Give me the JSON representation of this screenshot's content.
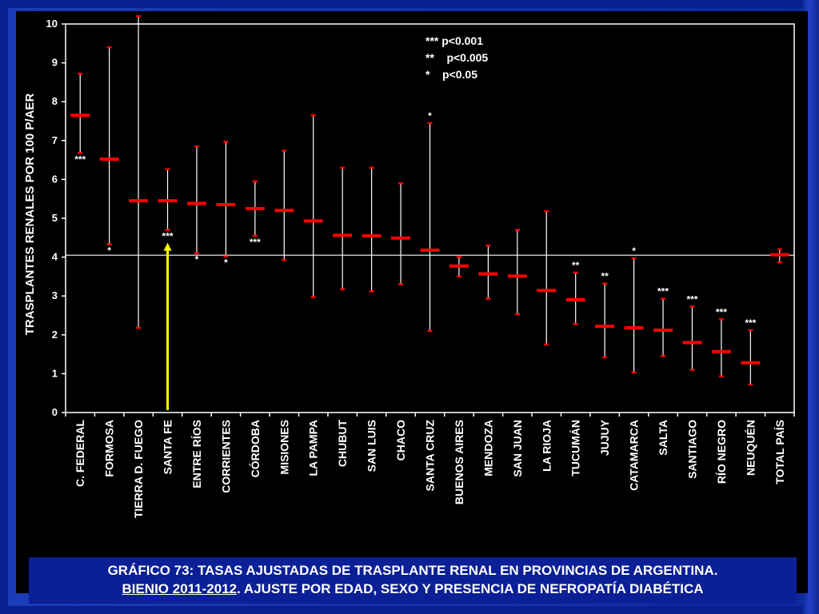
{
  "colors": {
    "background": "#0a1f8f",
    "plot_background": "#000000",
    "axis": "#ffffff",
    "marker": "#ff0000",
    "arrow": "#ffff00",
    "caption_background": "#0b1f96"
  },
  "caption": {
    "line1": "GRÁFICO 73: TASAS AJUSTADAS DE TRASPLANTE RENAL EN PROVINCIAS DE ARGENTINA.",
    "line2_underlined": "BIENIO 2011-2012",
    "line2_rest": ". AJUSTE POR EDAD, SEXO Y PRESENCIA DE NEFROPATÍA DIABÉTICA"
  },
  "legend": {
    "lines": [
      "*** p<0.001",
      "**    p<0.005",
      "*    p<0.05"
    ]
  },
  "chart_data": {
    "type": "errorbar",
    "ylabel": "TRASPLANTES RENALES POR 100 P/AER",
    "ylim": [
      0,
      10
    ],
    "yticks": [
      0,
      1,
      2,
      3,
      4,
      5,
      6,
      7,
      8,
      9,
      10
    ],
    "reference_line": 4.05,
    "highlight_arrow_category": "SANTA FE",
    "categories": [
      "C. FEDERAL",
      "FORMOSA",
      "TIERRA D. FUEGO",
      "SANTA FE",
      "ENTRE RÍOS",
      "CORRIENTES",
      "CÓRDOBA",
      "MISIONES",
      "LA PAMPA",
      "CHUBUT",
      "SAN LUIS",
      "CHACO",
      "SANTA CRUZ",
      "BUENOS AIRES",
      "MENDOZA",
      "SAN JUAN",
      "LA RIOJA",
      "TUCUMÁN",
      "JUJUY",
      "CATAMARCA",
      "SALTA",
      "SANTIAGO",
      "RÍO NEGRO",
      "NEUQUÉN",
      "TOTAL PAÍS"
    ],
    "values": [
      7.65,
      6.52,
      5.45,
      5.45,
      5.38,
      5.35,
      5.25,
      5.2,
      4.93,
      4.56,
      4.55,
      4.49,
      4.18,
      3.77,
      3.57,
      3.51,
      3.14,
      2.9,
      2.22,
      2.18,
      2.12,
      1.8,
      1.57,
      1.28,
      4.06
    ],
    "upper": [
      8.72,
      9.4,
      10.2,
      6.26,
      6.85,
      6.97,
      5.95,
      6.74,
      7.65,
      6.3,
      6.3,
      5.9,
      7.45,
      4.0,
      4.3,
      4.7,
      5.18,
      3.6,
      3.32,
      3.97,
      2.93,
      2.73,
      2.4,
      2.12,
      4.2
    ],
    "lower": [
      6.68,
      4.33,
      2.18,
      4.7,
      4.1,
      4.02,
      4.55,
      3.93,
      2.97,
      3.17,
      3.12,
      3.3,
      2.1,
      3.5,
      2.93,
      2.53,
      1.75,
      2.28,
      1.42,
      1.03,
      1.45,
      1.1,
      0.93,
      0.72,
      3.87
    ],
    "significance": [
      "***",
      "*",
      "",
      "***",
      "*",
      "*",
      "***",
      "",
      "",
      "",
      "",
      "",
      "*",
      "",
      "",
      "",
      "",
      "**",
      "**",
      "*",
      "***",
      "***",
      "***",
      "***",
      ""
    ],
    "significance_position": [
      "below",
      "below",
      "",
      "below",
      "below",
      "below",
      "below",
      "",
      "",
      "",
      "",
      "",
      "above",
      "",
      "",
      "",
      "",
      "above",
      "above",
      "above",
      "above",
      "above",
      "above",
      "above",
      ""
    ]
  }
}
